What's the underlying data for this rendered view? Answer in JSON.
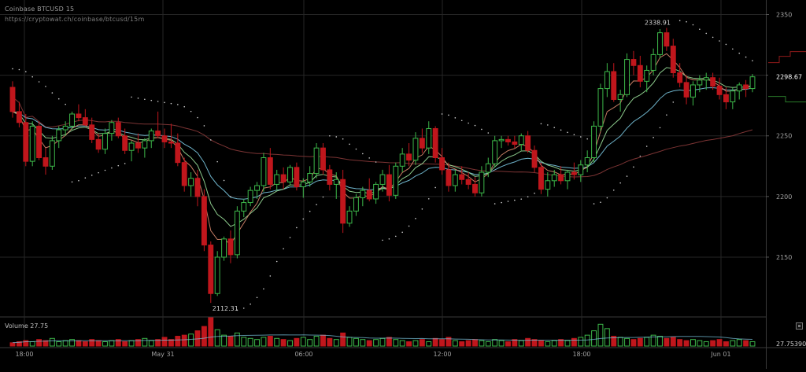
{
  "header": {
    "title": "Coinbase BTCUSD 15",
    "url": "https://cryptowat.ch/coinbase/btcusd/15m"
  },
  "volume": {
    "label": "Volume 27.75",
    "last_value": "27.753902"
  },
  "colors": {
    "background": "#000000",
    "grid": "#262626",
    "up": "#3db84a",
    "down": "#c0161c",
    "ema_fast": "#d98a6e",
    "ema_mid": "#9adf9a",
    "ema_slow": "#7ac6e0",
    "sma_long": "#8a3a3a",
    "psar": "#cfcfcf",
    "axis_text": "#a0a0a0"
  },
  "chart_data": {
    "type": "candlestick",
    "title": "Coinbase BTCUSD 15",
    "price_axis": {
      "ticks": [
        2150,
        2200,
        2250,
        2300,
        2350
      ],
      "ylim": [
        2102,
        2362
      ],
      "position": "right"
    },
    "x_axis": {
      "ticks": [
        "18:00",
        "May 31",
        "06:00",
        "12:00",
        "18:00",
        "Jun 01"
      ]
    },
    "grid": true,
    "last_price": 2298.67,
    "annotations": [
      {
        "label": "2112.31",
        "value": 2112.31,
        "kind": "low"
      },
      {
        "label": "2338.91",
        "value": 2338.91,
        "kind": "high"
      }
    ],
    "candles": [
      [
        2290,
        2295,
        2265,
        2270
      ],
      [
        2270,
        2278,
        2257,
        2261
      ],
      [
        2261,
        2268,
        2225,
        2229
      ],
      [
        2229,
        2262,
        2225,
        2258
      ],
      [
        2258,
        2262,
        2230,
        2232
      ],
      [
        2232,
        2240,
        2218,
        2225
      ],
      [
        2225,
        2250,
        2222,
        2246
      ],
      [
        2246,
        2258,
        2240,
        2255
      ],
      [
        2255,
        2262,
        2250,
        2258
      ],
      [
        2258,
        2270,
        2255,
        2268
      ],
      [
        2268,
        2276,
        2262,
        2265
      ],
      [
        2265,
        2272,
        2258,
        2259
      ],
      [
        2259,
        2265,
        2244,
        2247
      ],
      [
        2247,
        2252,
        2236,
        2239
      ],
      [
        2239,
        2256,
        2235,
        2252
      ],
      [
        2252,
        2263,
        2246,
        2261
      ],
      [
        2261,
        2265,
        2248,
        2250
      ],
      [
        2250,
        2256,
        2235,
        2238
      ],
      [
        2238,
        2246,
        2229,
        2244
      ],
      [
        2244,
        2252,
        2236,
        2240
      ],
      [
        2240,
        2248,
        2232,
        2246
      ],
      [
        2246,
        2256,
        2240,
        2254
      ],
      [
        2254,
        2270,
        2248,
        2250
      ],
      [
        2250,
        2256,
        2240,
        2245
      ],
      [
        2245,
        2260,
        2240,
        2244
      ],
      [
        2244,
        2252,
        2225,
        2228
      ],
      [
        2228,
        2232,
        2204,
        2209
      ],
      [
        2209,
        2220,
        2200,
        2215
      ],
      [
        2215,
        2222,
        2192,
        2200
      ],
      [
        2200,
        2206,
        2155,
        2160
      ],
      [
        2160,
        2163,
        2112.31,
        2120
      ],
      [
        2120,
        2155,
        2118,
        2150
      ],
      [
        2150,
        2167,
        2147,
        2165
      ],
      [
        2165,
        2172,
        2145,
        2152
      ],
      [
        2152,
        2192,
        2149,
        2188
      ],
      [
        2188,
        2198,
        2183,
        2195
      ],
      [
        2195,
        2208,
        2192,
        2205
      ],
      [
        2205,
        2212,
        2198,
        2209
      ],
      [
        2209,
        2236,
        2204,
        2232
      ],
      [
        2232,
        2240,
        2206,
        2210
      ],
      [
        2210,
        2222,
        2205,
        2218
      ],
      [
        2218,
        2224,
        2206,
        2212
      ],
      [
        2212,
        2226,
        2209,
        2224
      ],
      [
        2224,
        2228,
        2205,
        2208
      ],
      [
        2208,
        2215,
        2199,
        2212
      ],
      [
        2212,
        2225,
        2208,
        2219
      ],
      [
        2219,
        2244,
        2215,
        2240
      ],
      [
        2240,
        2244,
        2218,
        2222
      ],
      [
        2222,
        2226,
        2205,
        2210
      ],
      [
        2210,
        2220,
        2198,
        2214
      ],
      [
        2214,
        2222,
        2170,
        2178
      ],
      [
        2178,
        2192,
        2175,
        2188
      ],
      [
        2188,
        2202,
        2184,
        2199
      ],
      [
        2199,
        2208,
        2192,
        2205
      ],
      [
        2205,
        2215,
        2196,
        2198
      ],
      [
        2198,
        2212,
        2194,
        2210
      ],
      [
        2210,
        2222,
        2204,
        2218
      ],
      [
        2218,
        2226,
        2196,
        2201
      ],
      [
        2201,
        2228,
        2198,
        2225
      ],
      [
        2225,
        2240,
        2220,
        2235
      ],
      [
        2235,
        2244,
        2225,
        2230
      ],
      [
        2230,
        2253,
        2226,
        2248
      ],
      [
        2248,
        2256,
        2236,
        2240
      ],
      [
        2240,
        2262,
        2235,
        2256
      ],
      [
        2256,
        2258,
        2228,
        2232
      ],
      [
        2232,
        2240,
        2218,
        2222
      ],
      [
        2222,
        2228,
        2204,
        2209
      ],
      [
        2209,
        2222,
        2204,
        2218
      ],
      [
        2218,
        2225,
        2210,
        2214
      ],
      [
        2214,
        2220,
        2206,
        2210
      ],
      [
        2210,
        2216,
        2200,
        2203
      ],
      [
        2203,
        2225,
        2200,
        2220
      ],
      [
        2220,
        2232,
        2216,
        2227
      ],
      [
        2227,
        2250,
        2224,
        2246
      ],
      [
        2246,
        2250,
        2240,
        2247
      ],
      [
        2247,
        2250,
        2242,
        2245
      ],
      [
        2245,
        2250,
        2240,
        2243
      ],
      [
        2243,
        2252,
        2238,
        2250
      ],
      [
        2250,
        2254,
        2236,
        2238
      ],
      [
        2238,
        2242,
        2220,
        2224
      ],
      [
        2224,
        2228,
        2202,
        2206
      ],
      [
        2206,
        2220,
        2200,
        2213
      ],
      [
        2213,
        2222,
        2208,
        2218
      ],
      [
        2218,
        2225,
        2210,
        2213
      ],
      [
        2213,
        2222,
        2206,
        2220
      ],
      [
        2220,
        2228,
        2214,
        2218
      ],
      [
        2218,
        2230,
        2212,
        2226
      ],
      [
        2226,
        2238,
        2220,
        2232
      ],
      [
        2232,
        2262,
        2228,
        2258
      ],
      [
        2258,
        2293,
        2254,
        2289
      ],
      [
        2289,
        2310,
        2282,
        2303
      ],
      [
        2303,
        2310,
        2278,
        2280
      ],
      [
        2280,
        2288,
        2270,
        2284
      ],
      [
        2284,
        2318,
        2282,
        2313
      ],
      [
        2313,
        2320,
        2300,
        2308
      ],
      [
        2308,
        2316,
        2290,
        2295
      ],
      [
        2295,
        2308,
        2286,
        2304
      ],
      [
        2304,
        2322,
        2300,
        2317
      ],
      [
        2317,
        2338,
        2314,
        2335
      ],
      [
        2335,
        2339,
        2320,
        2324
      ],
      [
        2324,
        2330,
        2298,
        2302
      ],
      [
        2302,
        2310,
        2290,
        2294
      ],
      [
        2294,
        2300,
        2276,
        2282
      ],
      [
        2282,
        2295,
        2275,
        2292
      ],
      [
        2292,
        2300,
        2286,
        2296
      ],
      [
        2296,
        2302,
        2288,
        2298
      ],
      [
        2298,
        2302,
        2288,
        2291
      ],
      [
        2291,
        2298,
        2280,
        2284
      ],
      [
        2284,
        2290,
        2272,
        2278
      ],
      [
        2278,
        2290,
        2272,
        2287
      ],
      [
        2287,
        2294,
        2280,
        2292
      ],
      [
        2292,
        2296,
        2282,
        2289
      ],
      [
        2289,
        2301,
        2286,
        2298.67
      ]
    ],
    "volume": [
      3,
      4,
      5,
      4,
      6,
      5,
      7,
      4,
      5,
      6,
      5,
      4,
      6,
      5,
      4,
      5,
      6,
      4,
      5,
      6,
      7,
      5,
      6,
      8,
      6,
      9,
      10,
      11,
      14,
      18,
      26,
      15,
      10,
      9,
      12,
      8,
      7,
      6,
      8,
      9,
      7,
      6,
      5,
      7,
      8,
      6,
      9,
      10,
      7,
      6,
      12,
      8,
      7,
      6,
      5,
      6,
      7,
      8,
      6,
      5,
      4,
      5,
      6,
      4,
      7,
      6,
      8,
      5,
      4,
      5,
      6,
      5,
      4,
      6,
      5,
      4,
      6,
      5,
      7,
      6,
      5,
      4,
      5,
      6,
      5,
      7,
      8,
      10,
      14,
      20,
      16,
      9,
      8,
      7,
      6,
      7,
      8,
      10,
      9,
      7,
      8,
      6,
      5,
      6,
      5,
      4,
      5,
      6,
      4,
      5,
      6,
      5,
      4
    ]
  }
}
